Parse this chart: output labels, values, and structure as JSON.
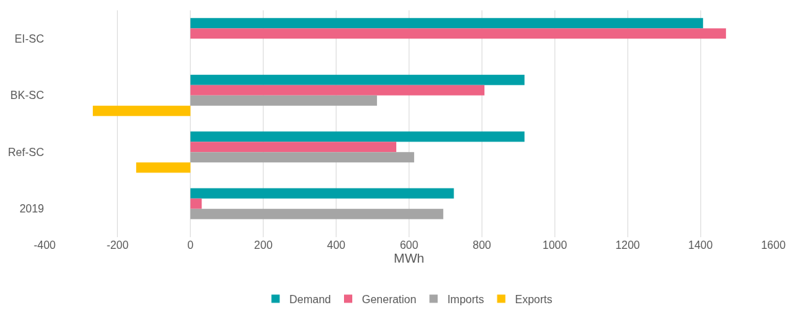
{
  "chart_data": {
    "type": "bar",
    "orientation": "horizontal",
    "xlabel": "MWh",
    "categories": [
      "EI-SC",
      "BK-SC",
      "Ref-SC",
      "2019"
    ],
    "series": [
      {
        "name": "Demand",
        "color": "#00a0a8",
        "values": [
          1407,
          917,
          917,
          723
        ]
      },
      {
        "name": "Generation",
        "color": "#ee6384",
        "values": [
          1470,
          807,
          565,
          31
        ]
      },
      {
        "name": "Imports",
        "color": "#a5a5a5",
        "values": [
          null,
          512,
          614,
          694
        ]
      },
      {
        "name": "Exports",
        "color": "#ffc000",
        "values": [
          null,
          -268,
          -149,
          null
        ]
      }
    ],
    "xlim": [
      -400,
      1600
    ],
    "xticks": [
      -400,
      -200,
      0,
      200,
      400,
      600,
      800,
      1000,
      1200,
      1400,
      1600
    ],
    "grid": "x",
    "legend": "bottom"
  }
}
